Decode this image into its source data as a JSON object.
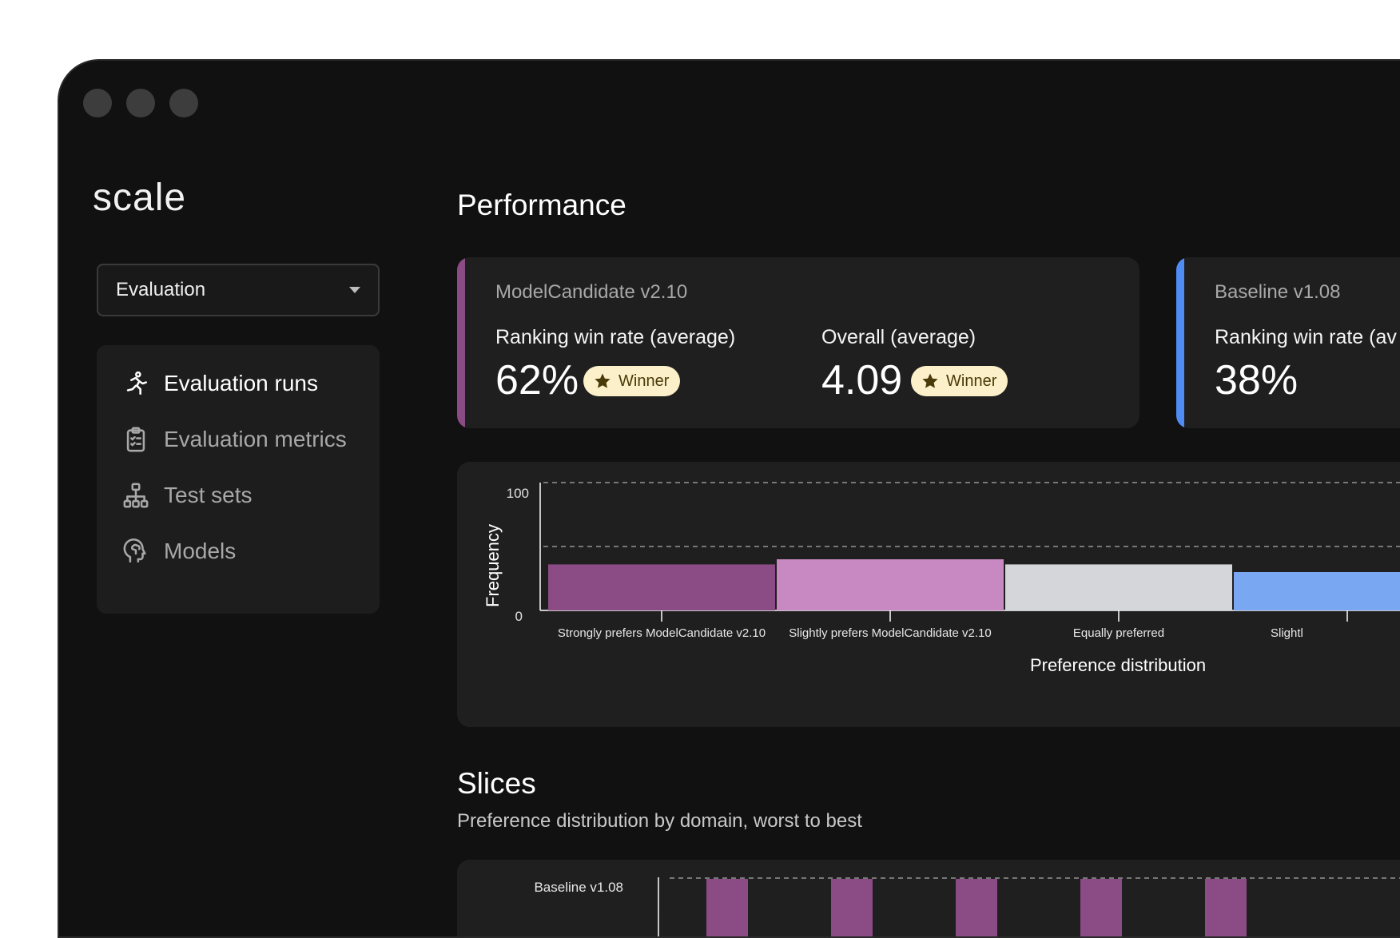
{
  "app": {
    "logo": "scale"
  },
  "sidebar": {
    "selector": {
      "value": "Evaluation"
    },
    "items": [
      {
        "label": "Evaluation runs",
        "icon": "running-person-icon",
        "active": true
      },
      {
        "label": "Evaluation metrics",
        "icon": "clipboard-checklist-icon",
        "active": false
      },
      {
        "label": "Test sets",
        "icon": "hierarchy-icon",
        "active": false
      },
      {
        "label": "Models",
        "icon": "brain-head-icon",
        "active": false
      }
    ]
  },
  "performance": {
    "title": "Performance",
    "cards": [
      {
        "model": "ModelCandidate v2.10",
        "accent": "#8b4b85",
        "metrics": [
          {
            "label": "Ranking win rate (average)",
            "value": "62%",
            "badge": "Winner"
          },
          {
            "label": "Overall (average)",
            "value": "4.09",
            "badge": "Winner"
          }
        ]
      },
      {
        "model": "Baseline v1.08",
        "accent": "#4f8df5",
        "metrics": [
          {
            "label": "Ranking win rate (av",
            "value": "38%"
          }
        ]
      }
    ]
  },
  "chart_data": {
    "type": "bar",
    "title": "Preference distribution",
    "ylabel": "Frequency",
    "ylim": [
      0,
      100
    ],
    "yticks": [
      "100",
      "0"
    ],
    "gridlines": [
      50,
      100
    ],
    "categories": [
      "Strongly prefers ModelCandidate v2.10",
      "Slightly prefers ModelCandidate v2.10",
      "Equally preferred",
      "Slightl"
    ],
    "values": [
      36,
      40,
      36,
      30
    ],
    "colors": [
      "#8b4b85",
      "#c888c2",
      "#d4d6da",
      "#7aa7f2"
    ]
  },
  "slices": {
    "title": "Slices",
    "subtitle": "Preference distribution by domain, worst to best",
    "row_label": "Baseline v1.08",
    "bar_color": "#8b4b85",
    "bar_count": 5
  }
}
